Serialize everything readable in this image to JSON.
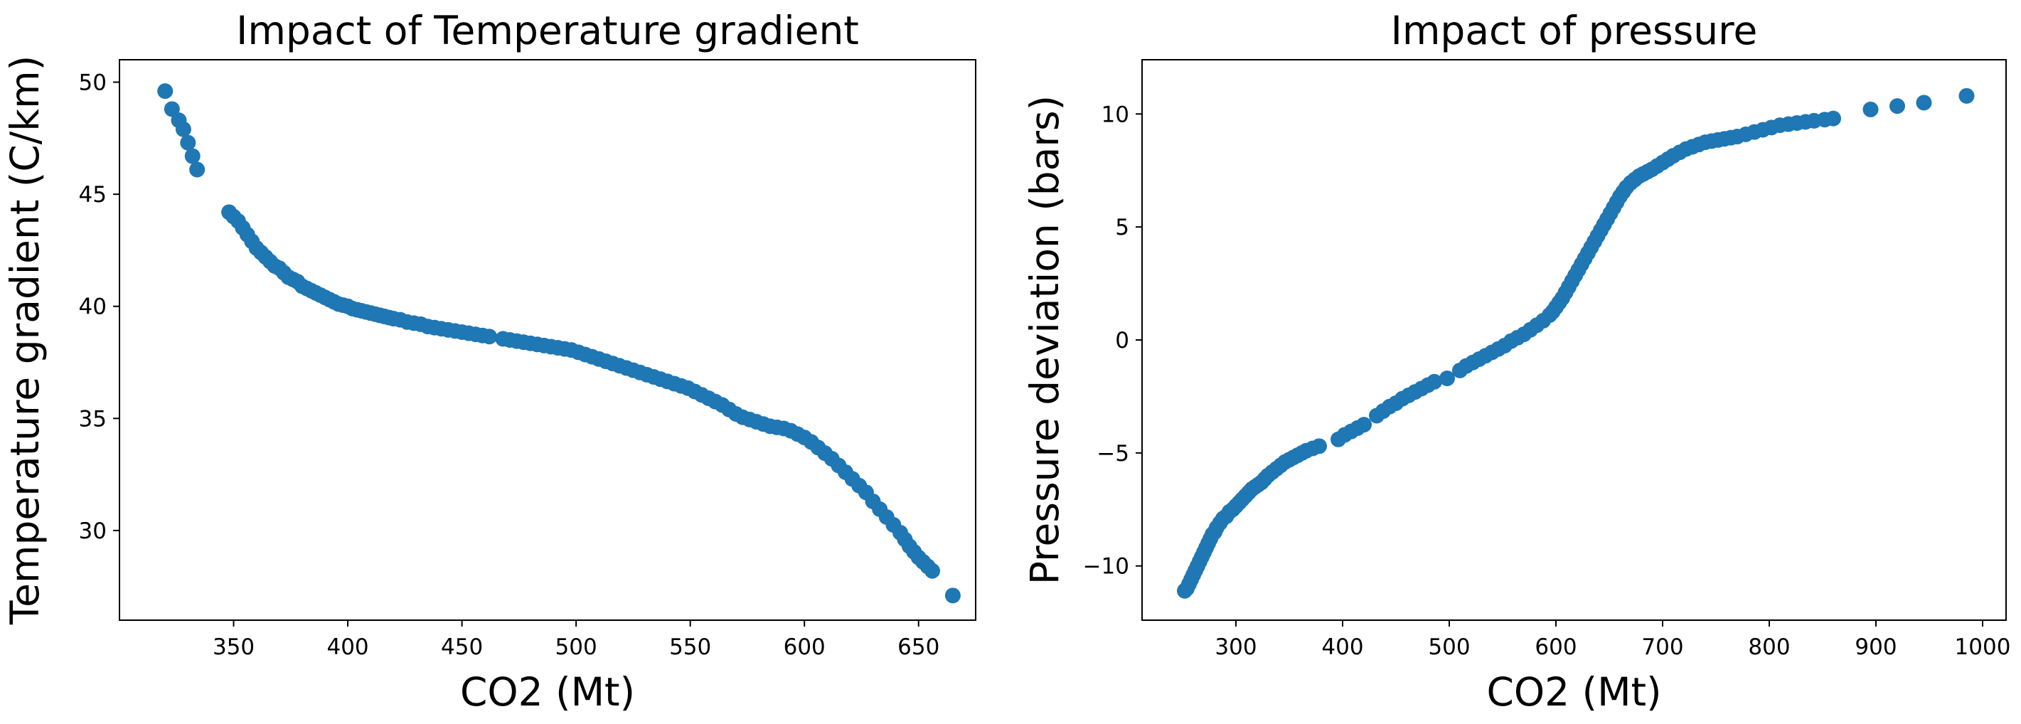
{
  "chart_data": [
    {
      "type": "scatter",
      "title": "Impact of Temperature gradient",
      "xlabel": "CO2 (Mt)",
      "ylabel": "Temperature gradient (C/km)",
      "xlim": [
        300,
        675
      ],
      "ylim": [
        26,
        51
      ],
      "xticks": [
        350,
        400,
        450,
        500,
        550,
        600,
        650
      ],
      "yticks": [
        30,
        35,
        40,
        45,
        50
      ],
      "grid": false,
      "color": "#1f77b4",
      "series": [
        {
          "x": [
            320,
            323,
            326,
            328,
            330,
            332,
            334,
            348,
            350,
            352,
            354,
            356,
            358,
            360,
            362,
            364,
            366,
            368,
            370,
            372,
            374,
            376,
            378,
            380,
            382,
            384,
            386,
            388,
            390,
            392,
            394,
            396,
            398,
            400,
            402,
            404,
            406,
            408,
            410,
            412,
            414,
            416,
            418,
            420,
            423,
            426,
            429,
            432,
            435,
            438,
            441,
            444,
            447,
            450,
            453,
            456,
            459,
            462,
            468,
            471,
            474,
            477,
            480,
            483,
            486,
            489,
            492,
            495,
            498,
            501,
            504,
            507,
            510,
            513,
            516,
            519,
            522,
            525,
            528,
            531,
            534,
            537,
            540,
            543,
            546,
            549,
            552,
            555,
            558,
            561,
            564,
            567,
            570,
            573,
            576,
            579,
            582,
            585,
            588,
            591,
            594,
            597,
            600,
            603,
            606,
            609,
            612,
            615,
            618,
            621,
            624,
            627,
            630,
            633,
            636,
            639,
            642,
            644,
            646,
            648,
            650,
            652,
            654,
            656,
            665
          ],
          "y": [
            49.6,
            48.8,
            48.3,
            47.9,
            47.3,
            46.7,
            46.1,
            44.2,
            44.0,
            43.8,
            43.5,
            43.2,
            42.9,
            42.6,
            42.4,
            42.2,
            42.0,
            41.8,
            41.7,
            41.5,
            41.3,
            41.2,
            41.1,
            40.9,
            40.8,
            40.7,
            40.6,
            40.5,
            40.4,
            40.3,
            40.2,
            40.1,
            40.05,
            40.0,
            39.9,
            39.85,
            39.8,
            39.75,
            39.7,
            39.65,
            39.6,
            39.55,
            39.5,
            39.45,
            39.4,
            39.3,
            39.25,
            39.2,
            39.1,
            39.05,
            39.0,
            38.95,
            38.9,
            38.85,
            38.8,
            38.75,
            38.7,
            38.65,
            38.55,
            38.5,
            38.45,
            38.4,
            38.35,
            38.3,
            38.25,
            38.2,
            38.15,
            38.1,
            38.05,
            37.95,
            37.85,
            37.75,
            37.65,
            37.55,
            37.45,
            37.35,
            37.25,
            37.15,
            37.05,
            36.95,
            36.85,
            36.75,
            36.65,
            36.55,
            36.45,
            36.35,
            36.2,
            36.05,
            35.9,
            35.75,
            35.6,
            35.4,
            35.2,
            35.05,
            34.95,
            34.85,
            34.75,
            34.65,
            34.6,
            34.55,
            34.45,
            34.3,
            34.15,
            33.95,
            33.7,
            33.45,
            33.2,
            32.9,
            32.6,
            32.3,
            32.0,
            31.7,
            31.3,
            30.95,
            30.6,
            30.25,
            29.9,
            29.6,
            29.3,
            29.05,
            28.8,
            28.6,
            28.4,
            28.2,
            27.1
          ]
        }
      ]
    },
    {
      "type": "scatter",
      "title": "Impact of pressure",
      "xlabel": "CO2 (Mt)",
      "ylabel": "Pressure deviation (bars)",
      "xlim": [
        212,
        1022
      ],
      "ylim": [
        -12.4,
        12.4
      ],
      "xticks": [
        300,
        400,
        500,
        600,
        700,
        800,
        900,
        1000
      ],
      "yticks": [
        -10,
        -5,
        0,
        5,
        10
      ],
      "grid": false,
      "color": "#1f77b4",
      "series": [
        {
          "x": [
            252,
            254,
            256,
            258,
            260,
            262,
            264,
            266,
            268,
            270,
            272,
            274,
            276,
            278,
            280,
            282,
            285,
            288,
            291,
            294,
            297,
            300,
            303,
            306,
            309,
            312,
            315,
            318,
            321,
            324,
            327,
            330,
            334,
            338,
            342,
            346,
            350,
            354,
            358,
            362,
            366,
            372,
            378,
            396,
            402,
            408,
            414,
            420,
            432,
            438,
            444,
            450,
            456,
            462,
            468,
            474,
            480,
            486,
            498,
            510,
            516,
            522,
            528,
            534,
            540,
            546,
            552,
            558,
            564,
            570,
            576,
            582,
            588,
            594,
            597,
            600,
            603,
            606,
            609,
            612,
            615,
            618,
            621,
            624,
            627,
            630,
            633,
            636,
            639,
            642,
            645,
            648,
            651,
            654,
            657,
            660,
            663,
            666,
            670,
            674,
            678,
            682,
            686,
            690,
            695,
            700,
            705,
            710,
            716,
            722,
            728,
            734,
            740,
            746,
            752,
            758,
            764,
            770,
            778,
            786,
            794,
            802,
            810,
            818,
            826,
            834,
            842,
            852,
            860,
            895,
            920,
            945,
            985
          ],
          "y": [
            -11.1,
            -11.0,
            -10.8,
            -10.6,
            -10.4,
            -10.2,
            -10.0,
            -9.8,
            -9.6,
            -9.4,
            -9.2,
            -9.0,
            -8.8,
            -8.6,
            -8.5,
            -8.3,
            -8.1,
            -7.9,
            -7.8,
            -7.6,
            -7.5,
            -7.35,
            -7.2,
            -7.05,
            -6.9,
            -6.75,
            -6.6,
            -6.5,
            -6.4,
            -6.3,
            -6.15,
            -6.0,
            -5.85,
            -5.7,
            -5.55,
            -5.4,
            -5.3,
            -5.2,
            -5.1,
            -5.0,
            -4.9,
            -4.8,
            -4.7,
            -4.4,
            -4.2,
            -4.05,
            -3.9,
            -3.75,
            -3.35,
            -3.15,
            -2.95,
            -2.8,
            -2.6,
            -2.45,
            -2.3,
            -2.15,
            -2.0,
            -1.85,
            -1.7,
            -1.35,
            -1.15,
            -1.0,
            -0.85,
            -0.7,
            -0.55,
            -0.4,
            -0.25,
            -0.05,
            0.1,
            0.25,
            0.45,
            0.65,
            0.85,
            1.1,
            1.25,
            1.45,
            1.65,
            1.85,
            2.1,
            2.35,
            2.6,
            2.85,
            3.1,
            3.35,
            3.6,
            3.85,
            4.1,
            4.35,
            4.6,
            4.85,
            5.1,
            5.35,
            5.6,
            5.85,
            6.1,
            6.35,
            6.55,
            6.75,
            6.95,
            7.1,
            7.25,
            7.35,
            7.45,
            7.55,
            7.7,
            7.85,
            8.0,
            8.15,
            8.3,
            8.45,
            8.55,
            8.65,
            8.75,
            8.8,
            8.85,
            8.9,
            8.95,
            9.0,
            9.1,
            9.2,
            9.3,
            9.4,
            9.5,
            9.55,
            9.6,
            9.65,
            9.7,
            9.75,
            9.8,
            10.2,
            10.35,
            10.5,
            10.8
          ]
        }
      ]
    }
  ]
}
